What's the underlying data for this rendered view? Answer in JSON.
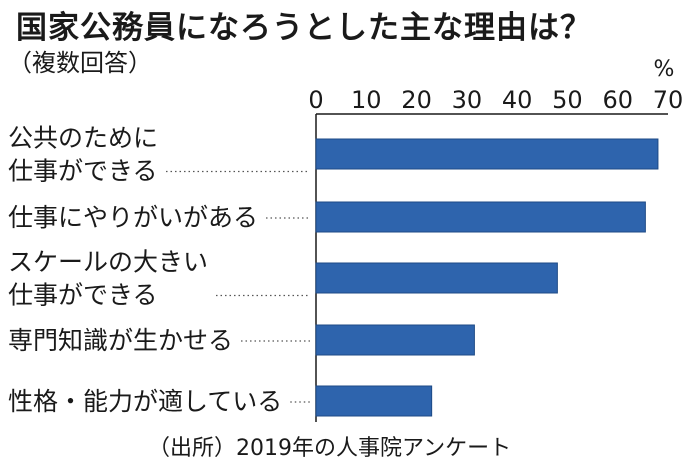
{
  "chart_data": {
    "type": "bar",
    "orientation": "horizontal",
    "title": "国家公務員になろうとした主な理由は？",
    "subtitle": "（複数回答）",
    "unit": "%",
    "source": "（出所）2019年の人事院アンケート",
    "categories": [
      [
        "公共のために",
        "仕事ができる"
      ],
      [
        "仕事にやりがいがある"
      ],
      [
        "スケールの大きい",
        "仕事ができる"
      ],
      [
        "専門知識が生かせる"
      ],
      [
        "性格・能力が適している"
      ]
    ],
    "values": [
      68,
      65.5,
      48,
      31.5,
      23
    ],
    "xlim": [
      0,
      70
    ],
    "xticks": [
      "0",
      "10",
      "20",
      "30",
      "40",
      "50",
      "60",
      "70"
    ],
    "bar_color": "#2e64ad",
    "grid": false
  }
}
